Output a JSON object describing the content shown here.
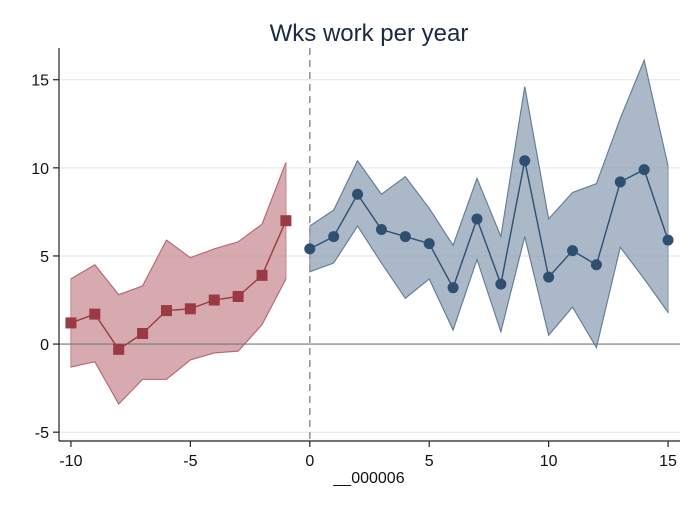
{
  "chart_data": {
    "type": "line",
    "title": "Wks work per year",
    "xlabel": "__000006",
    "ylabel": "",
    "xlim": [
      -10.5,
      15.5
    ],
    "ylim": [
      -5.5,
      16.8
    ],
    "x_ticks": [
      -10,
      -5,
      0,
      5,
      10,
      15
    ],
    "y_ticks": [
      -5,
      0,
      5,
      10,
      15
    ],
    "grid": "horizontal",
    "reference_lines": {
      "y": 0,
      "x": 0
    },
    "series": [
      {
        "marker": "square",
        "color": "#9b3a42",
        "band_fill": "#c88e93",
        "x": [
          -10,
          -9,
          -8,
          -7,
          -6,
          -5,
          -4,
          -3,
          -2,
          -1
        ],
        "y": [
          1.2,
          1.7,
          -0.3,
          0.6,
          1.9,
          2.0,
          2.5,
          2.7,
          3.9,
          7.0
        ],
        "lower": [
          -1.3,
          -1.0,
          -3.4,
          -2.0,
          -2.0,
          -0.9,
          -0.5,
          -0.4,
          1.1,
          3.7
        ],
        "upper": [
          3.7,
          4.5,
          2.8,
          3.3,
          5.9,
          4.9,
          5.4,
          5.8,
          6.8,
          10.3
        ]
      },
      {
        "marker": "circle",
        "color": "#2f4f70",
        "band_fill": "#8da0b4",
        "x": [
          0,
          1,
          2,
          3,
          4,
          5,
          6,
          7,
          8,
          9,
          10,
          11,
          12,
          13,
          14,
          15
        ],
        "y": [
          5.4,
          6.1,
          8.5,
          6.5,
          6.1,
          5.7,
          3.2,
          7.1,
          3.4,
          10.4,
          3.8,
          5.3,
          4.5,
          9.2,
          9.9,
          5.9
        ],
        "lower": [
          4.1,
          4.6,
          6.7,
          4.6,
          2.6,
          3.7,
          0.8,
          4.8,
          0.7,
          6.1,
          0.5,
          2.1,
          -0.2,
          5.5,
          3.7,
          1.8
        ],
        "upper": [
          6.7,
          7.6,
          10.4,
          8.5,
          9.5,
          7.7,
          5.6,
          9.4,
          6.1,
          14.6,
          7.1,
          8.6,
          9.1,
          12.8,
          16.1,
          10.1
        ]
      }
    ],
    "colors": {
      "axis": "#222222",
      "grid": "#dfe5ea",
      "zero_line": "#777777",
      "vline": "#999999"
    }
  }
}
